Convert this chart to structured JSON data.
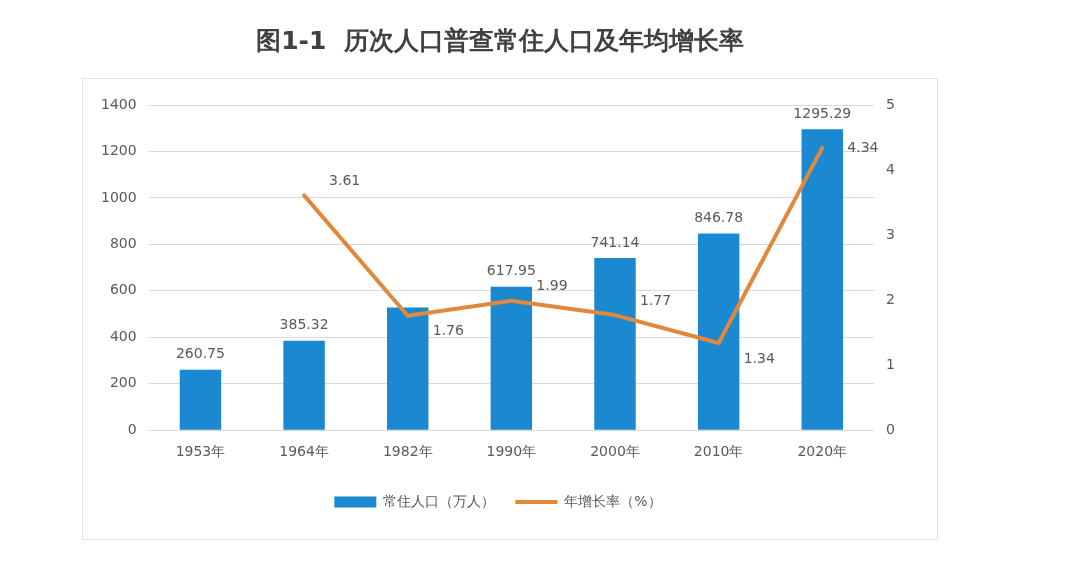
{
  "chart_data": {
    "type": "bar",
    "title": "图1-1  历次人口普查常住人口及年均增长率",
    "categories": [
      "1953年",
      "1964年",
      "1982年",
      "1990年",
      "2000年",
      "2010年",
      "2020年"
    ],
    "series": [
      {
        "name": "常住人口（万人）",
        "type": "bar",
        "color": "#1b89d1",
        "values": [
          260.75,
          385.32,
          528,
          617.95,
          741.14,
          846.78,
          1295.29
        ],
        "value_labels": [
          "260.75",
          "385.32",
          null,
          "617.95",
          "741.14",
          "846.78",
          "1295.29"
        ]
      },
      {
        "name": "年增长率（%）",
        "type": "line",
        "axis": "y2",
        "color": "#e0893c",
        "values": [
          null,
          3.61,
          1.76,
          1.99,
          1.77,
          1.34,
          4.34
        ],
        "value_labels": [
          null,
          "3.61",
          "1.76",
          "1.99",
          "1.77",
          "1.34",
          "4.34"
        ]
      }
    ],
    "ylim": [
      0,
      1400
    ],
    "yticks": [
      0,
      200,
      400,
      600,
      800,
      1000,
      1200,
      1400
    ],
    "y2lim": [
      0,
      5
    ],
    "y2ticks": [
      0,
      1,
      2,
      3,
      4,
      5
    ],
    "grid": "y",
    "legend": "bottom"
  }
}
